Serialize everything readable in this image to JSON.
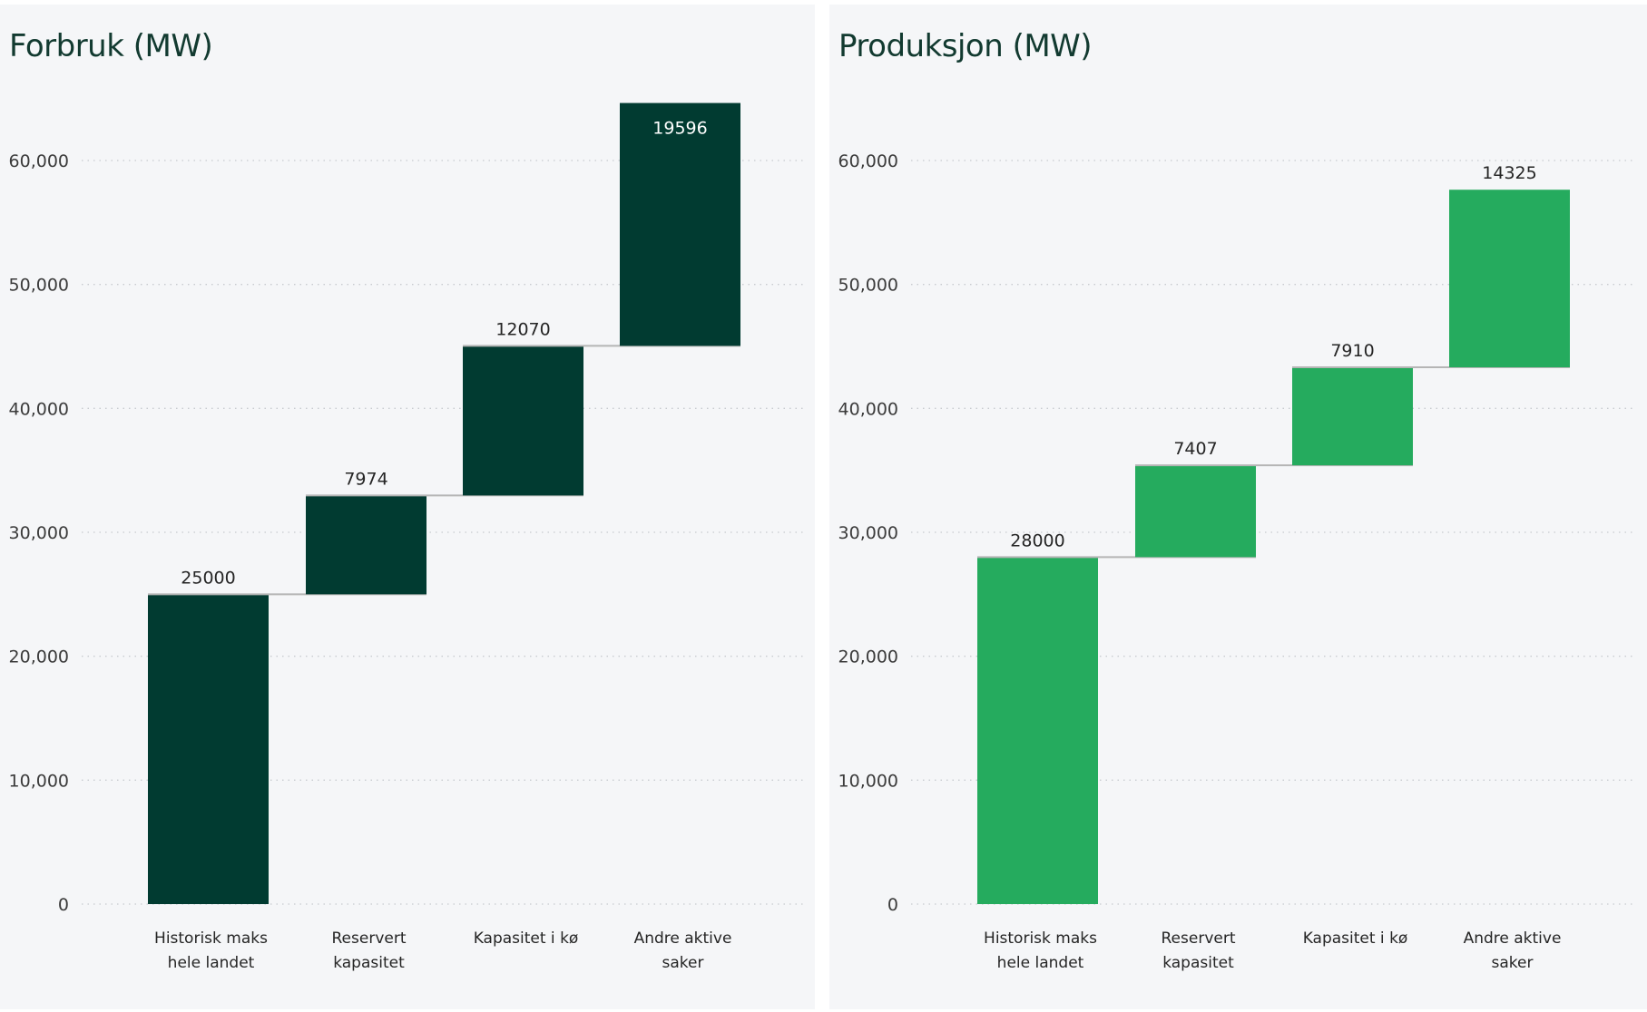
{
  "chart_data": [
    {
      "type": "waterfall",
      "title": "Forbruk (MW)",
      "categories": [
        "Historisk maks hele landet",
        "Reservert kapasitet",
        "Kapasitet i kø",
        "Andre aktive saker"
      ],
      "category_lines": [
        [
          "Historisk maks",
          "hele landet"
        ],
        [
          "Reservert",
          "kapasitet"
        ],
        [
          "Kapasitet i kø"
        ],
        [
          "Andre aktive",
          "saker"
        ]
      ],
      "values": [
        25000,
        7974,
        12070,
        19596
      ],
      "value_labels": [
        "25000",
        "7974",
        "12070",
        "19596"
      ],
      "ylim": [
        0,
        65000
      ],
      "yticks": [
        0,
        10000,
        20000,
        30000,
        40000,
        50000,
        60000
      ],
      "ytick_labels": [
        "0",
        "10,000",
        "20,000",
        "30,000",
        "40,000",
        "50,000",
        "60,000"
      ],
      "grid": true,
      "color": "#013b31"
    },
    {
      "type": "waterfall",
      "title": "Produksjon (MW)",
      "categories": [
        "Historisk maks hele landet",
        "Reservert kapasitet",
        "Kapasitet i kø",
        "Andre aktive saker"
      ],
      "category_lines": [
        [
          "Historisk maks",
          "hele landet"
        ],
        [
          "Reservert",
          "kapasitet"
        ],
        [
          "Kapasitet i kø"
        ],
        [
          "Andre aktive",
          "saker"
        ]
      ],
      "values": [
        28000,
        7407,
        7910,
        14325
      ],
      "value_labels": [
        "28000",
        "7407",
        "7910",
        "14325"
      ],
      "ylim": [
        0,
        65000
      ],
      "yticks": [
        0,
        10000,
        20000,
        30000,
        40000,
        50000,
        60000
      ],
      "ytick_labels": [
        "0",
        "10,000",
        "20,000",
        "30,000",
        "40,000",
        "50,000",
        "60,000"
      ],
      "grid": true,
      "color": "#25ab5e"
    }
  ]
}
